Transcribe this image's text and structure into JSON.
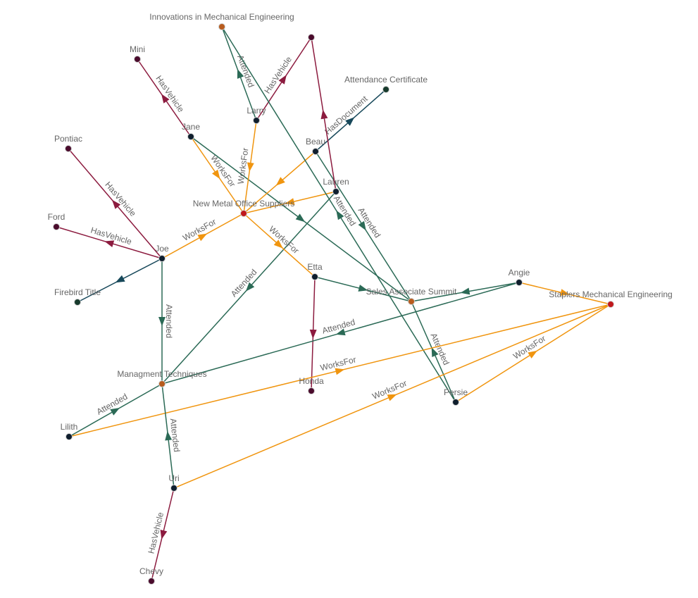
{
  "colors": {
    "WorksFor": "#f0950f",
    "Attended": "#2b6a56",
    "HasVehicle": "#8c1b3f",
    "HasDocument": "#17485a",
    "person": "#0f1e2d",
    "vehicle": "#4a0b2c",
    "document": "#173a2c",
    "event": "#b85c1e",
    "company": "#c0181c"
  },
  "nodes": [
    {
      "id": "innov",
      "label": "Innovations in Mechanical Engineering",
      "type": "event"
    },
    {
      "id": "car1",
      "label": "",
      "type": "vehicle"
    },
    {
      "id": "mini",
      "label": "Mini",
      "type": "vehicle"
    },
    {
      "id": "cert",
      "label": "Attendance Certificate",
      "type": "document"
    },
    {
      "id": "larry",
      "label": "Larry",
      "type": "person"
    },
    {
      "id": "jane",
      "label": "Jane",
      "type": "person"
    },
    {
      "id": "pontiac",
      "label": "Pontiac",
      "type": "vehicle"
    },
    {
      "id": "beau",
      "label": "Beau",
      "type": "person"
    },
    {
      "id": "lauren",
      "label": "Lauren",
      "type": "person"
    },
    {
      "id": "newmetal",
      "label": "New Metal Office Suppliers",
      "type": "company"
    },
    {
      "id": "ford",
      "label": "Ford",
      "type": "vehicle"
    },
    {
      "id": "joe",
      "label": "Joe",
      "type": "person"
    },
    {
      "id": "etta",
      "label": "Etta",
      "type": "person"
    },
    {
      "id": "angie",
      "label": "Angie",
      "type": "person"
    },
    {
      "id": "firebird",
      "label": "Firebird Title",
      "type": "document"
    },
    {
      "id": "summit",
      "label": "Sales Associate Summit",
      "type": "event"
    },
    {
      "id": "staplers",
      "label": "Staplers Mechanical Engineering",
      "type": "company"
    },
    {
      "id": "mgmt",
      "label": "Managment Techniques",
      "type": "event"
    },
    {
      "id": "honda",
      "label": "Honda",
      "type": "vehicle"
    },
    {
      "id": "persie",
      "label": "Persie",
      "type": "person"
    },
    {
      "id": "lilith",
      "label": "Lilith",
      "type": "person"
    },
    {
      "id": "uri",
      "label": "Uri",
      "type": "person"
    },
    {
      "id": "chevy",
      "label": "Chevy",
      "type": "vehicle"
    }
  ],
  "edges": [
    {
      "source": "jane",
      "target": "mini",
      "relation": "HasVehicle",
      "label": "HasVehicle"
    },
    {
      "source": "jane",
      "target": "newmetal",
      "relation": "WorksFor",
      "label": "WorksFor"
    },
    {
      "source": "jane",
      "target": "summit",
      "relation": "Attended",
      "label": ""
    },
    {
      "source": "larry",
      "target": "innov",
      "relation": "Attended",
      "label": "Attended"
    },
    {
      "source": "larry",
      "target": "car1",
      "relation": "HasVehicle",
      "label": "HasVehicle"
    },
    {
      "source": "larry",
      "target": "newmetal",
      "relation": "WorksFor",
      "label": "WorksFor"
    },
    {
      "source": "beau",
      "target": "cert",
      "relation": "HasDocument",
      "label": "HasDocument"
    },
    {
      "source": "beau",
      "target": "newmetal",
      "relation": "WorksFor",
      "label": ""
    },
    {
      "source": "beau",
      "target": "summit",
      "relation": "Attended",
      "label": "Attended"
    },
    {
      "source": "lauren",
      "target": "car1",
      "relation": "HasVehicle",
      "label": ""
    },
    {
      "source": "lauren",
      "target": "newmetal",
      "relation": "WorksFor",
      "label": ""
    },
    {
      "source": "lauren",
      "target": "mgmt",
      "relation": "Attended",
      "label": "Attended"
    },
    {
      "source": "persie",
      "target": "innov",
      "relation": "Attended",
      "label": "Attended"
    },
    {
      "source": "persie",
      "target": "summit",
      "relation": "Attended",
      "label": "Attended"
    },
    {
      "source": "persie",
      "target": "staplers",
      "relation": "WorksFor",
      "label": "WorksFor"
    },
    {
      "source": "joe",
      "target": "pontiac",
      "relation": "HasVehicle",
      "label": "HasVehicle"
    },
    {
      "source": "joe",
      "target": "ford",
      "relation": "HasVehicle",
      "label": "HasVehicle"
    },
    {
      "source": "joe",
      "target": "firebird",
      "relation": "HasDocument",
      "label": ""
    },
    {
      "source": "joe",
      "target": "newmetal",
      "relation": "WorksFor",
      "label": "WorksFor"
    },
    {
      "source": "joe",
      "target": "mgmt",
      "relation": "Attended",
      "label": "Attended"
    },
    {
      "source": "newmetal",
      "target": "etta",
      "relation": "WorksFor",
      "label": "WorksFor"
    },
    {
      "source": "etta",
      "target": "summit",
      "relation": "Attended",
      "label": ""
    },
    {
      "source": "etta",
      "target": "honda",
      "relation": "HasVehicle",
      "label": ""
    },
    {
      "source": "angie",
      "target": "summit",
      "relation": "Attended",
      "label": ""
    },
    {
      "source": "angie",
      "target": "staplers",
      "relation": "WorksFor",
      "label": ""
    },
    {
      "source": "angie",
      "target": "mgmt",
      "relation": "Attended",
      "label": "Attended"
    },
    {
      "source": "lilith",
      "target": "mgmt",
      "relation": "Attended",
      "label": "Attended"
    },
    {
      "source": "lilith",
      "target": "staplers",
      "relation": "WorksFor",
      "label": "WorksFor"
    },
    {
      "source": "uri",
      "target": "mgmt",
      "relation": "Attended",
      "label": "Attended"
    },
    {
      "source": "uri",
      "target": "staplers",
      "relation": "WorksFor",
      "label": "WorksFor"
    },
    {
      "source": "uri",
      "target": "chevy",
      "relation": "HasVehicle",
      "label": "HasVehicle"
    }
  ]
}
